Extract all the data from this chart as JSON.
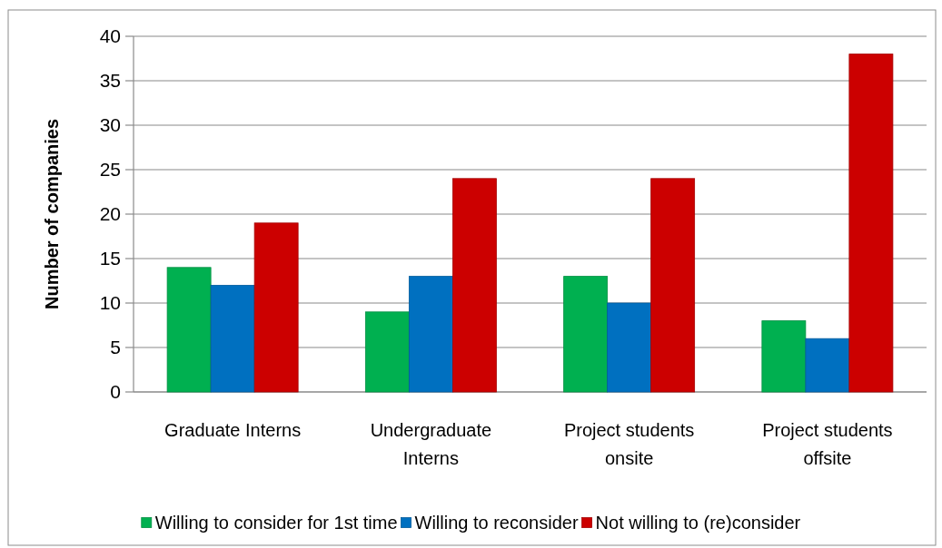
{
  "chart_data": {
    "type": "bar",
    "ylabel": "Number of companies",
    "categories": [
      "Graduate Interns",
      "Undergraduate Interns",
      "Project students onsite",
      "Project students offsite"
    ],
    "series": [
      {
        "name": "Willing to consider for 1st time",
        "color": "#00b050",
        "values": [
          14,
          9,
          13,
          8
        ]
      },
      {
        "name": "Willing to reconsider",
        "color": "#0070c0",
        "values": [
          12,
          13,
          10,
          6
        ]
      },
      {
        "name": "Not willing to (re)consider",
        "color": "#cc0000",
        "values": [
          19,
          24,
          24,
          38
        ]
      }
    ],
    "ylim": [
      0,
      40
    ],
    "yticks": [
      0,
      5,
      10,
      15,
      20,
      25,
      30,
      35,
      40
    ],
    "grid": "y",
    "legend": "bottom"
  }
}
